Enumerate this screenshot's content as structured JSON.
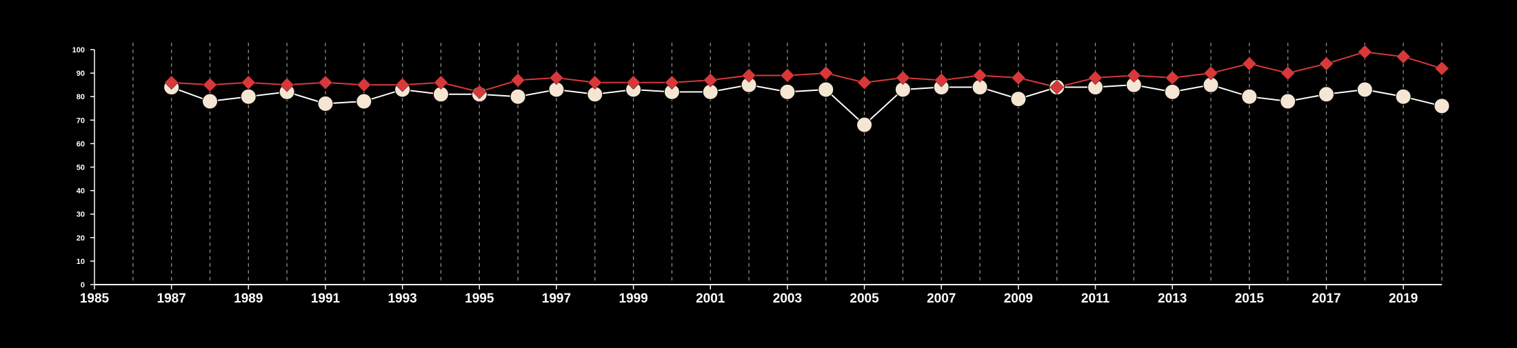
{
  "chart_data": {
    "type": "line",
    "title": "",
    "xlabel": "",
    "ylabel": "",
    "xlim": [
      1985,
      2020
    ],
    "ylim": [
      0,
      100
    ],
    "x_ticks": [
      "1985",
      "1987",
      "1989",
      "1991",
      "1993",
      "1995",
      "1997",
      "1999",
      "2001",
      "2003",
      "2005",
      "2007",
      "2009",
      "2011",
      "2013",
      "2015",
      "2017",
      "2019"
    ],
    "y_ticks": [
      "0",
      "10",
      "20",
      "30",
      "40",
      "50",
      "60",
      "70",
      "80",
      "90",
      "100"
    ],
    "vertical_gridlines": "dashed, every year",
    "x": [
      1987,
      1988,
      1989,
      1990,
      1991,
      1992,
      1993,
      1994,
      1995,
      1996,
      1997,
      1998,
      1999,
      2000,
      2001,
      2002,
      2003,
      2004,
      2005,
      2006,
      2007,
      2008,
      2009,
      2010,
      2011,
      2012,
      2013,
      2014,
      2015,
      2016,
      2017,
      2018,
      2019,
      2020
    ],
    "series": [
      {
        "marker": "diamond",
        "color": "#d9383a",
        "values": [
          86,
          85,
          86,
          85,
          86,
          85,
          85,
          86,
          82,
          87,
          88,
          86,
          86,
          86,
          87,
          89,
          89,
          90,
          86,
          88,
          87,
          89,
          88,
          84,
          88,
          89,
          88,
          90,
          94,
          90,
          94,
          99,
          97,
          92
        ]
      },
      {
        "marker": "circle",
        "color": "#f5e6d3",
        "line_color": "#ffffff",
        "values": [
          84,
          78,
          80,
          82,
          77,
          78,
          83,
          81,
          81,
          80,
          83,
          81,
          83,
          82,
          82,
          85,
          82,
          83,
          68,
          83,
          84,
          84,
          79,
          84,
          84,
          85,
          82,
          85,
          80,
          78,
          81,
          83,
          80,
          76
        ]
      }
    ]
  }
}
